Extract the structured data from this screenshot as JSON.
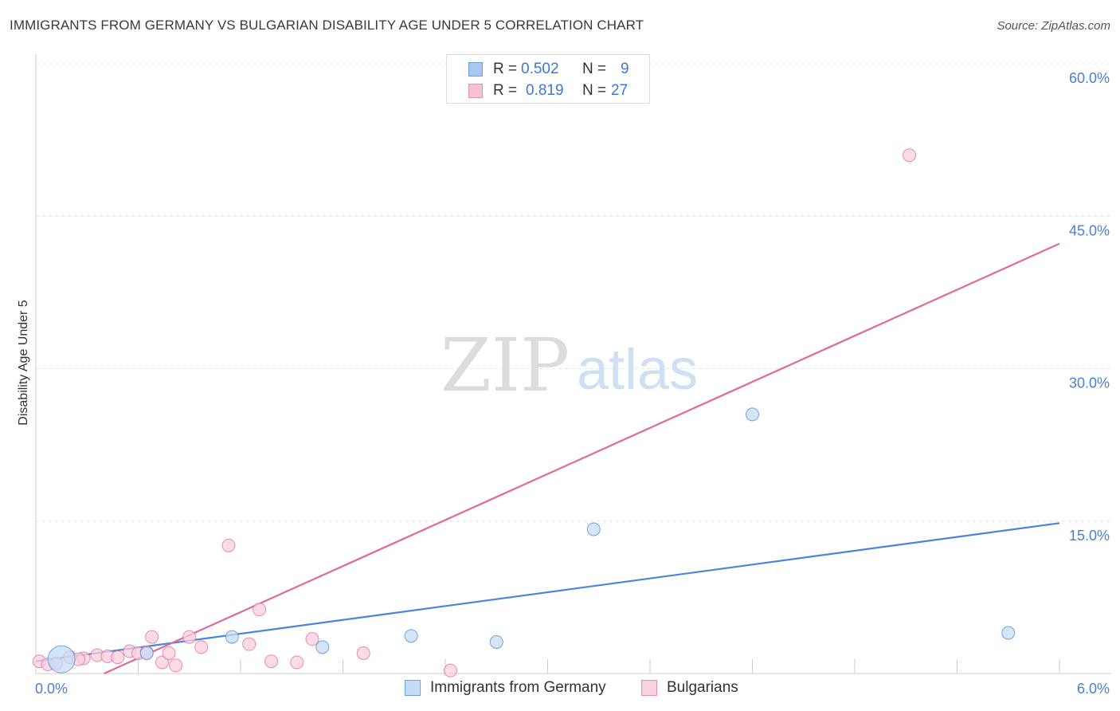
{
  "header": {
    "title": "IMMIGRANTS FROM GERMANY VS BULGARIAN DISABILITY AGE UNDER 5 CORRELATION CHART",
    "source": "Source: ZipAtlas.com"
  },
  "watermark": {
    "zip": "ZIP",
    "atlas": "atlas"
  },
  "legend_top": [
    {
      "r_label": "R =",
      "r_value": "0.502",
      "n_label": "N =",
      "n_value": "9",
      "color": "#a8c8f0",
      "border": "#6f9fd8"
    },
    {
      "r_label": "R =",
      "r_value": "0.819",
      "n_label": "N =",
      "n_value": "27",
      "color": "#f7c3d3",
      "border": "#e690ad"
    }
  ],
  "legend_bottom": [
    {
      "label": "Immigrants from Germany",
      "color": "#c6dcf6",
      "border": "#6f9fd8"
    },
    {
      "label": "Bulgarians",
      "color": "#f9d0dd",
      "border": "#e690ad"
    }
  ],
  "chart_data": {
    "type": "scatter",
    "title": "IMMIGRANTS FROM GERMANY VS BULGARIAN DISABILITY AGE UNDER 5 CORRELATION CHART",
    "xlabel": "",
    "ylabel": "Disability Age Under 5",
    "xlim": [
      0,
      6
    ],
    "ylim": [
      0,
      60
    ],
    "x_tick_labels": [
      "0.0%",
      "6.0%"
    ],
    "y_ticks": [
      15,
      30,
      45,
      60
    ],
    "y_tick_labels": [
      "15.0%",
      "30.0%",
      "45.0%",
      "60.0%"
    ],
    "grid": true,
    "series": [
      {
        "name": "Immigrants from Germany",
        "color": "#4a86d8",
        "fill": "#c6dcf6",
        "points": [
          {
            "x": 0.15,
            "y": 1.4,
            "big": true
          },
          {
            "x": 0.65,
            "y": 2.0
          },
          {
            "x": 1.15,
            "y": 3.6
          },
          {
            "x": 1.68,
            "y": 2.6
          },
          {
            "x": 2.2,
            "y": 3.7
          },
          {
            "x": 2.7,
            "y": 3.1
          },
          {
            "x": 3.27,
            "y": 14.2
          },
          {
            "x": 4.2,
            "y": 25.5
          },
          {
            "x": 5.7,
            "y": 4.0
          }
        ],
        "trend": {
          "x0": 0.0,
          "y0": 1.2,
          "x1": 6.0,
          "y1": 14.8
        }
      },
      {
        "name": "Bulgarians",
        "color": "#e0689a",
        "fill": "#f9d0dd",
        "points": [
          {
            "x": 0.02,
            "y": 1.2
          },
          {
            "x": 0.07,
            "y": 0.9
          },
          {
            "x": 0.12,
            "y": 1.0
          },
          {
            "x": 0.2,
            "y": 1.6
          },
          {
            "x": 0.28,
            "y": 1.5
          },
          {
            "x": 0.36,
            "y": 1.8
          },
          {
            "x": 0.42,
            "y": 1.7
          },
          {
            "x": 0.48,
            "y": 1.6
          },
          {
            "x": 0.55,
            "y": 2.2
          },
          {
            "x": 0.6,
            "y": 2.0
          },
          {
            "x": 0.68,
            "y": 3.6
          },
          {
            "x": 0.74,
            "y": 1.1
          },
          {
            "x": 0.78,
            "y": 2.0
          },
          {
            "x": 0.82,
            "y": 0.8
          },
          {
            "x": 0.9,
            "y": 3.6
          },
          {
            "x": 0.97,
            "y": 2.6
          },
          {
            "x": 1.13,
            "y": 12.6
          },
          {
            "x": 1.25,
            "y": 2.9
          },
          {
            "x": 1.31,
            "y": 6.3
          },
          {
            "x": 1.38,
            "y": 1.2
          },
          {
            "x": 1.53,
            "y": 1.1
          },
          {
            "x": 1.62,
            "y": 3.4
          },
          {
            "x": 1.92,
            "y": 2.0
          },
          {
            "x": 2.43,
            "y": 0.3
          },
          {
            "x": 5.12,
            "y": 51.0
          },
          {
            "x": 0.65,
            "y": 2.1
          },
          {
            "x": 0.25,
            "y": 1.4
          }
        ],
        "trend": {
          "x0": 0.4,
          "y0": 0.0,
          "x1": 6.0,
          "y1": 42.3
        }
      }
    ]
  }
}
